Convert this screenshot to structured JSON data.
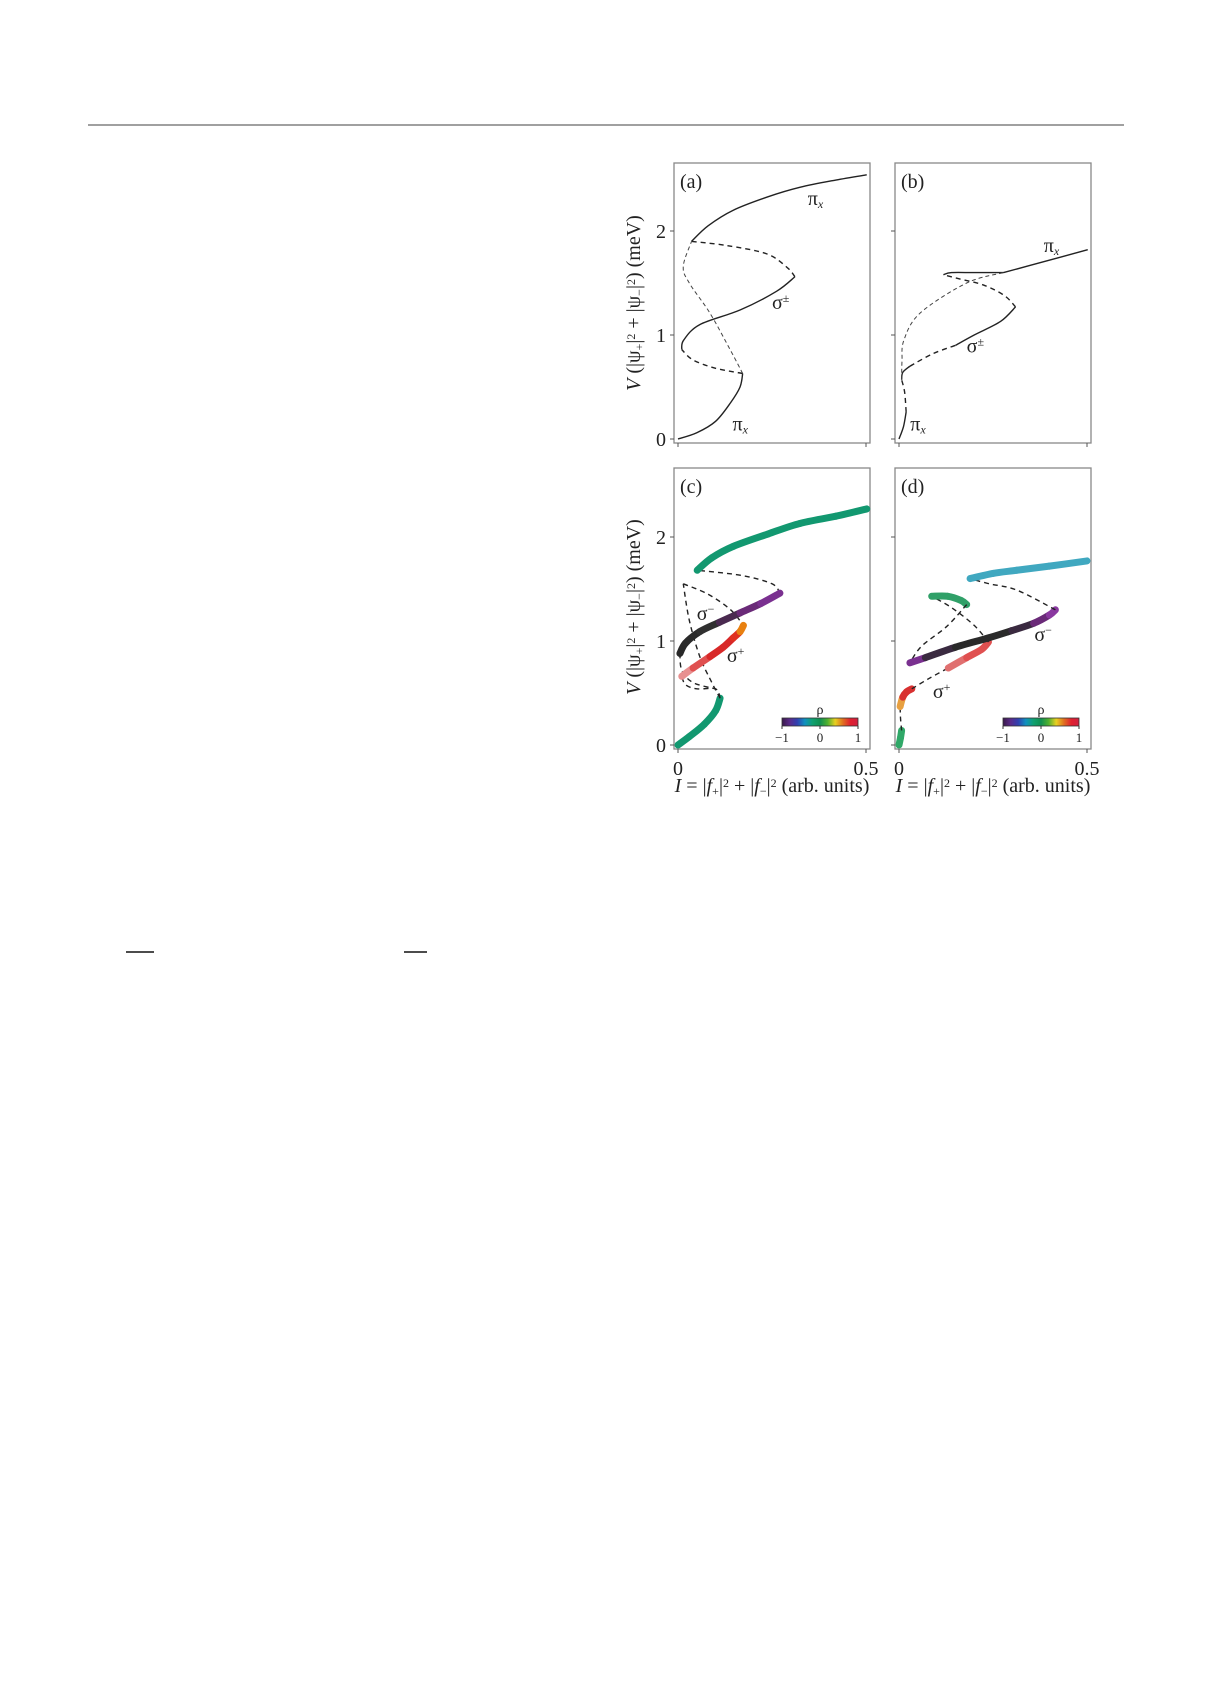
{
  "colors": {
    "rule": "#808080",
    "frame": "#888888",
    "curve": "#222222"
  },
  "chart_data": [
    {
      "type": "line",
      "panel_label": "(a)",
      "xlim": [
        0,
        0.51
      ],
      "ylim": [
        -0.04,
        2.7
      ],
      "yticks": [
        "0",
        "1",
        "2"
      ],
      "xticks": [],
      "annotations": [
        {
          "text": "π",
          "sub": "x",
          "at": [
            0.345,
            2.25
          ]
        },
        {
          "text": "π",
          "sub": "x",
          "at": [
            0.145,
            0.08
          ]
        },
        {
          "text": "σ",
          "sup": "±",
          "at": [
            0.25,
            1.25
          ]
        }
      ],
      "series": [
        {
          "style": "solid",
          "points": [
            [
              0,
              0
            ],
            [
              0.05,
              0.06
            ],
            [
              0.1,
              0.17
            ],
            [
              0.14,
              0.35
            ],
            [
              0.165,
              0.5
            ],
            [
              0.172,
              0.63
            ]
          ]
        },
        {
          "style": "dashed",
          "points": [
            [
              0.172,
              0.63
            ],
            [
              0.1,
              0.68
            ],
            [
              0.04,
              0.76
            ],
            [
              0.01,
              0.86
            ]
          ]
        },
        {
          "style": "solid",
          "points": [
            [
              0.01,
              0.86
            ],
            [
              0.015,
              0.95
            ],
            [
              0.058,
              1.1
            ],
            [
              0.165,
              1.24
            ],
            [
              0.262,
              1.42
            ],
            [
              0.311,
              1.56
            ]
          ]
        },
        {
          "style": "dashed",
          "points": [
            [
              0.311,
              1.56
            ],
            [
              0.29,
              1.65
            ],
            [
              0.236,
              1.78
            ],
            [
              0.13,
              1.86
            ],
            [
              0.036,
              1.9
            ]
          ]
        },
        {
          "style": "dashed-thin",
          "points": [
            [
              0.172,
              0.63
            ],
            [
              0.14,
              0.85
            ],
            [
              0.085,
              1.21
            ],
            [
              0.03,
              1.5
            ],
            [
              0.014,
              1.66
            ],
            [
              0.036,
              1.9
            ]
          ]
        },
        {
          "style": "solid",
          "points": [
            [
              0.036,
              1.9
            ],
            [
              0.08,
              2.05
            ],
            [
              0.147,
              2.2
            ],
            [
              0.24,
              2.33
            ],
            [
              0.324,
              2.42
            ],
            [
              0.42,
              2.49
            ],
            [
              0.502,
              2.54
            ]
          ]
        }
      ]
    },
    {
      "type": "line",
      "panel_label": "(b)",
      "xlim": [
        0,
        0.51
      ],
      "ylim": [
        -0.04,
        2.7
      ],
      "yticks": [],
      "xticks": [],
      "annotations": [
        {
          "text": "π",
          "sub": "x",
          "at": [
            0.385,
            1.8
          ]
        },
        {
          "text": "π",
          "sub": "x",
          "at": [
            0.03,
            0.08
          ]
        },
        {
          "text": "σ",
          "sup": "±",
          "at": [
            0.18,
            0.83
          ]
        }
      ],
      "series": [
        {
          "style": "solid",
          "points": [
            [
              0,
              0
            ],
            [
              0.012,
              0.12
            ],
            [
              0.019,
              0.26
            ]
          ]
        },
        {
          "style": "dashed",
          "points": [
            [
              0.019,
              0.26
            ],
            [
              0.015,
              0.45
            ],
            [
              0.007,
              0.57
            ]
          ]
        },
        {
          "style": "solid",
          "points": [
            [
              0.007,
              0.57
            ],
            [
              0.01,
              0.64
            ],
            [
              0.029,
              0.7
            ]
          ]
        },
        {
          "style": "dashed",
          "points": [
            [
              0.029,
              0.7
            ],
            [
              0.09,
              0.82
            ],
            [
              0.15,
              0.9
            ]
          ]
        },
        {
          "style": "solid",
          "points": [
            [
              0.15,
              0.9
            ],
            [
              0.2,
              1.0
            ],
            [
              0.27,
              1.13
            ],
            [
              0.31,
              1.27
            ]
          ]
        },
        {
          "style": "dashed",
          "points": [
            [
              0.31,
              1.27
            ],
            [
              0.28,
              1.38
            ],
            [
              0.225,
              1.48
            ],
            [
              0.16,
              1.54
            ],
            [
              0.118,
              1.58
            ]
          ]
        },
        {
          "style": "solid",
          "points": [
            [
              0.118,
              1.58
            ],
            [
              0.14,
              1.6
            ],
            [
              0.2,
              1.6
            ],
            [
              0.278,
              1.6
            ]
          ]
        },
        {
          "style": "solid",
          "points": [
            [
              0.278,
              1.6
            ],
            [
              0.38,
              1.7
            ],
            [
              0.502,
              1.82
            ]
          ]
        },
        {
          "style": "dashed-thin",
          "points": [
            [
              0.007,
              0.57
            ],
            [
              0.008,
              0.75
            ],
            [
              0.013,
              0.95
            ],
            [
              0.056,
              1.21
            ],
            [
              0.18,
              1.5
            ],
            [
              0.278,
              1.6
            ]
          ]
        }
      ]
    },
    {
      "type": "line",
      "panel_label": "(c)",
      "xlim": [
        0,
        0.51
      ],
      "ylim": [
        -0.04,
        2.7
      ],
      "yticks": [
        "0",
        "1",
        "2"
      ],
      "xticks": [
        "0",
        "0.5"
      ],
      "annotations": [
        {
          "text": "σ",
          "sup": "−",
          "at": [
            0.05,
            1.2
          ]
        },
        {
          "text": "σ",
          "sup": "+",
          "at": [
            0.13,
            0.8
          ]
        }
      ],
      "colorbar": {
        "label": "ρ",
        "ticks": [
          "−1",
          "0",
          "1"
        ],
        "stops": [
          "#3a1a4a",
          "#5a2a8a",
          "#3040b0",
          "#1090c0",
          "#10a070",
          "#109050",
          "#50b030",
          "#e8d020",
          "#e07020",
          "#e02030",
          "#d02040"
        ]
      },
      "series": [
        {
          "style": "thick",
          "points": [
            [
              0,
              0
            ],
            [
              0.03,
              0.08
            ],
            [
              0.07,
              0.2
            ],
            [
              0.1,
              0.33
            ],
            [
              0.112,
              0.45
            ]
          ],
          "colors": [
            "#129870",
            "#129870",
            "#129870",
            "#129870",
            "#129870"
          ]
        },
        {
          "style": "dashed",
          "points": [
            [
              0.112,
              0.45
            ],
            [
              0.1,
              0.54
            ],
            [
              0.05,
              0.54
            ],
            [
              0.02,
              0.58
            ],
            [
              0.01,
              0.66
            ]
          ]
        },
        {
          "style": "dashed",
          "points": [
            [
              0.112,
              0.45
            ],
            [
              0.09,
              0.6
            ],
            [
              0.058,
              0.85
            ],
            [
              0.03,
              1.2
            ],
            [
              0.014,
              1.55
            ]
          ]
        },
        {
          "style": "dashed",
          "points": [
            [
              0.014,
              1.55
            ],
            [
              0.08,
              1.45
            ],
            [
              0.14,
              1.3
            ],
            [
              0.174,
              1.15
            ]
          ]
        },
        {
          "style": "dashed",
          "points": [
            [
              0.005,
              0.88
            ],
            [
              0.01,
              0.72
            ],
            [
              0.04,
              0.6
            ],
            [
              0.1,
              0.54
            ]
          ]
        },
        {
          "style": "dashed",
          "points": [
            [
              0.271,
              1.46
            ],
            [
              0.25,
              1.55
            ],
            [
              0.17,
              1.63
            ],
            [
              0.051,
              1.68
            ]
          ]
        },
        {
          "style": "thick",
          "points": [
            [
              0.005,
              0.88
            ],
            [
              0.02,
              0.98
            ],
            [
              0.058,
              1.09
            ],
            [
              0.11,
              1.18
            ],
            [
              0.165,
              1.27
            ],
            [
              0.22,
              1.36
            ],
            [
              0.271,
              1.46
            ]
          ],
          "colors": [
            "#282828",
            "#2a2a2a",
            "#303030",
            "#4a2a50",
            "#6a2a78",
            "#7a3090",
            "#8a38a0"
          ]
        },
        {
          "style": "thick",
          "points": [
            [
              0.01,
              0.66
            ],
            [
              0.04,
              0.74
            ],
            [
              0.085,
              0.85
            ],
            [
              0.12,
              0.94
            ],
            [
              0.147,
              1.03
            ],
            [
              0.165,
              1.09
            ],
            [
              0.174,
              1.15
            ]
          ],
          "colors": [
            "#e89090",
            "#e05050",
            "#d82828",
            "#d82828",
            "#e03020",
            "#e88010",
            "#e8b010"
          ]
        },
        {
          "style": "thick",
          "points": [
            [
              0.051,
              1.68
            ],
            [
              0.09,
              1.8
            ],
            [
              0.147,
              1.91
            ],
            [
              0.24,
              2.03
            ],
            [
              0.324,
              2.13
            ],
            [
              0.42,
              2.2
            ],
            [
              0.502,
              2.27
            ]
          ],
          "colors": [
            "#129870",
            "#129870",
            "#129870",
            "#129870",
            "#129870",
            "#129870",
            "#129870"
          ]
        }
      ]
    },
    {
      "type": "line",
      "panel_label": "(d)",
      "xlim": [
        0,
        0.51
      ],
      "ylim": [
        -0.04,
        2.7
      ],
      "yticks": [],
      "xticks": [
        "0",
        "0.5"
      ],
      "annotations": [
        {
          "text": "σ",
          "sup": "−",
          "at": [
            0.36,
            1.0
          ]
        },
        {
          "text": "σ",
          "sup": "+",
          "at": [
            0.09,
            0.45
          ]
        }
      ],
      "colorbar": {
        "label": "ρ",
        "ticks": [
          "−1",
          "0",
          "1"
        ],
        "stops": [
          "#3a1a4a",
          "#5a2a8a",
          "#3040b0",
          "#1090c0",
          "#10a070",
          "#109050",
          "#50b030",
          "#e8d020",
          "#e07020",
          "#e02030",
          "#d02040"
        ]
      },
      "series": [
        {
          "style": "thick",
          "points": [
            [
              0,
              0
            ],
            [
              0.004,
              0.07
            ],
            [
              0.007,
              0.14
            ]
          ],
          "colors": [
            "#30a868",
            "#30a868",
            "#30a868"
          ]
        },
        {
          "style": "dashed",
          "points": [
            [
              0.007,
              0.14
            ],
            [
              0.004,
              0.26
            ],
            [
              0.003,
              0.37
            ]
          ]
        },
        {
          "style": "thick",
          "points": [
            [
              0.003,
              0.37
            ],
            [
              0.01,
              0.46
            ],
            [
              0.02,
              0.51
            ],
            [
              0.034,
              0.54
            ]
          ],
          "colors": [
            "#e8a040",
            "#d83030",
            "#d83030",
            "#d83030"
          ]
        },
        {
          "style": "dashed",
          "points": [
            [
              0.034,
              0.54
            ],
            [
              0.08,
              0.64
            ],
            [
              0.131,
              0.74
            ]
          ]
        },
        {
          "style": "thick",
          "points": [
            [
              0.131,
              0.74
            ],
            [
              0.18,
              0.84
            ],
            [
              0.22,
              0.92
            ],
            [
              0.238,
              0.99
            ]
          ],
          "colors": [
            "#e07070",
            "#e05050",
            "#e05050",
            "#e05050"
          ]
        },
        {
          "style": "dashed",
          "points": [
            [
              0.238,
              0.99
            ],
            [
              0.2,
              1.15
            ],
            [
              0.14,
              1.32
            ],
            [
              0.087,
              1.43
            ]
          ]
        },
        {
          "style": "thick",
          "points": [
            [
              0.087,
              1.43
            ],
            [
              0.13,
              1.43
            ],
            [
              0.165,
              1.39
            ],
            [
              0.18,
              1.35
            ]
          ],
          "colors": [
            "#30a068",
            "#30a068",
            "#30a068",
            "#30a068"
          ]
        },
        {
          "style": "dashed",
          "points": [
            [
              0.18,
              1.35
            ],
            [
              0.127,
              1.14
            ],
            [
              0.06,
              0.95
            ],
            [
              0.029,
              0.79
            ]
          ]
        },
        {
          "style": "thick",
          "points": [
            [
              0.029,
              0.79
            ],
            [
              0.07,
              0.84
            ],
            [
              0.15,
              0.94
            ],
            [
              0.238,
              1.03
            ],
            [
              0.3,
              1.1
            ],
            [
              0.358,
              1.17
            ],
            [
              0.4,
              1.25
            ],
            [
              0.416,
              1.3
            ]
          ],
          "colors": [
            "#7a3090",
            "#3a2a40",
            "#2a2a2a",
            "#2a2a2a",
            "#3a2a40",
            "#6a2a78",
            "#8a38a0",
            "#8a38a0"
          ]
        },
        {
          "style": "dashed",
          "points": [
            [
              0.416,
              1.3
            ],
            [
              0.313,
              1.49
            ],
            [
              0.24,
              1.55
            ],
            [
              0.189,
              1.6
            ]
          ]
        },
        {
          "style": "thick",
          "points": [
            [
              0.189,
              1.6
            ],
            [
              0.25,
              1.65
            ],
            [
              0.313,
              1.68
            ],
            [
              0.4,
              1.72
            ],
            [
              0.5,
              1.77
            ]
          ],
          "colors": [
            "#40a8c0",
            "#40a8c0",
            "#40a8c0",
            "#40a8c0",
            "#40a8c0"
          ]
        }
      ]
    }
  ],
  "axes": {
    "ylabel": [
      {
        "t": "V",
        "i": true
      },
      {
        "t": " (|ψ"
      },
      {
        "t": "+",
        "sub": true
      },
      {
        "t": "|"
      },
      {
        "t": "2",
        "sup": true
      },
      {
        "t": " + |ψ"
      },
      {
        "t": "−",
        "sub": true
      },
      {
        "t": "|"
      },
      {
        "t": "2",
        "sup": true
      },
      {
        "t": ") (meV)"
      }
    ],
    "xlabel": [
      {
        "t": "I",
        "i": true
      },
      {
        "t": " = |"
      },
      {
        "t": "f",
        "i": true
      },
      {
        "t": "+",
        "sub": true
      },
      {
        "t": "|"
      },
      {
        "t": "2",
        "sup": true
      },
      {
        "t": " + |"
      },
      {
        "t": "f",
        "i": true
      },
      {
        "t": "−",
        "sub": true
      },
      {
        "t": "|"
      },
      {
        "t": "2",
        "sup": true
      },
      {
        "t": " (arb. units)"
      }
    ]
  }
}
